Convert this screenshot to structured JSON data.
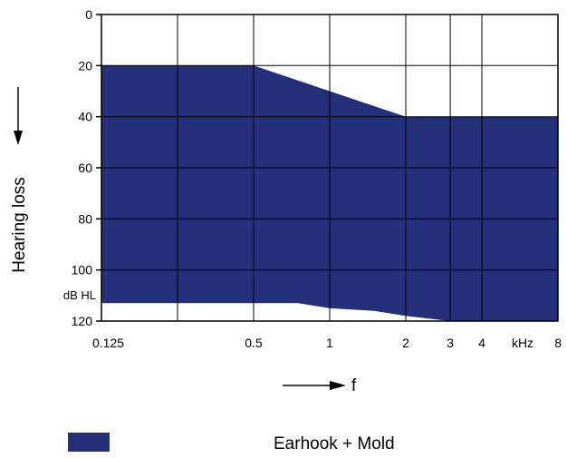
{
  "chart_data": {
    "type": "area",
    "title": "",
    "xlabel": "f",
    "ylabel": "Hearing loss",
    "y_unit": "dB HL",
    "x_unit": "kHz",
    "x_scale": "log",
    "x_range": [
      0.125,
      8
    ],
    "y_range": [
      0,
      120
    ],
    "y_inverted": true,
    "grid": true,
    "x_ticks": [
      {
        "value": 0.125,
        "label": "0.125"
      },
      {
        "value": 0.5,
        "label": "0.5"
      },
      {
        "value": 1,
        "label": "1"
      },
      {
        "value": 2,
        "label": "2"
      },
      {
        "value": 3,
        "label": "3"
      },
      {
        "value": 4,
        "label": "4"
      },
      {
        "value": 8,
        "label": "8"
      }
    ],
    "x_gridlines": [
      0.125,
      0.25,
      0.5,
      1,
      2,
      3,
      4,
      8
    ],
    "y_ticks": [
      {
        "value": 0,
        "label": "0"
      },
      {
        "value": 20,
        "label": "20"
      },
      {
        "value": 40,
        "label": "40"
      },
      {
        "value": 60,
        "label": "60"
      },
      {
        "value": 80,
        "label": "80"
      },
      {
        "value": 100,
        "label": "100"
      },
      {
        "value": 120,
        "label": "120"
      }
    ],
    "series": [
      {
        "name": "Earhook + Mold",
        "color": "#24307a",
        "upper": [
          {
            "x": 0.125,
            "y": 20
          },
          {
            "x": 0.5,
            "y": 20
          },
          {
            "x": 1,
            "y": 30
          },
          {
            "x": 2,
            "y": 40
          },
          {
            "x": 8,
            "y": 40
          }
        ],
        "lower": [
          {
            "x": 0.125,
            "y": 113
          },
          {
            "x": 0.75,
            "y": 113
          },
          {
            "x": 1,
            "y": 115
          },
          {
            "x": 1.5,
            "y": 116
          },
          {
            "x": 2,
            "y": 118
          },
          {
            "x": 3,
            "y": 120
          },
          {
            "x": 8,
            "y": 120
          }
        ]
      }
    ],
    "legend": {
      "position": "bottom",
      "label": "Earhook + Mold"
    }
  }
}
